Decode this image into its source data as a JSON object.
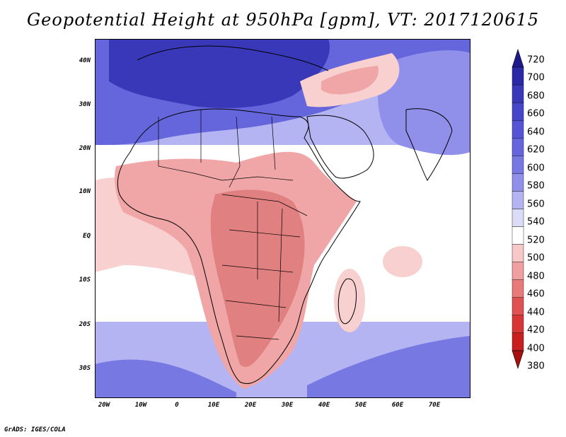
{
  "title": "Geopotential Height at 950hPa [gpm], VT: 2017120615",
  "axes": {
    "lat_labels": [
      "40N",
      "30N",
      "20N",
      "10N",
      "EQ",
      "10S",
      "20S",
      "30S"
    ],
    "lon_labels": [
      "20W",
      "10W",
      "0",
      "10E",
      "20E",
      "30E",
      "40E",
      "50E",
      "60E",
      "70E"
    ]
  },
  "colorbar": {
    "levels": [
      "720",
      "700",
      "680",
      "660",
      "640",
      "620",
      "600",
      "580",
      "560",
      "540",
      "520",
      "500",
      "480",
      "460",
      "440",
      "420",
      "400",
      "380"
    ],
    "colors": [
      "#1e1a8c",
      "#2a2aa8",
      "#3838b8",
      "#4646c8",
      "#5454d4",
      "#6565dc",
      "#7878e2",
      "#9090ea",
      "#b4b4f2",
      "#dcdcf8",
      "#ffffff",
      "#f8c8c8",
      "#f0a0a0",
      "#e87a7a",
      "#e05252",
      "#d83636",
      "#c82020",
      "#a81010"
    ]
  },
  "map_colors": {
    "ocean_high": "#5050d0",
    "ocean_mid": "#9a9ae8",
    "ocean_light": "#d8d8f6",
    "neutral": "#ffffff",
    "low_light": "#f8d0d0",
    "low_mid": "#f0a6a6",
    "low_strong": "#e08080",
    "border": "#000000"
  },
  "credit": "GrADS: IGES/COLA"
}
